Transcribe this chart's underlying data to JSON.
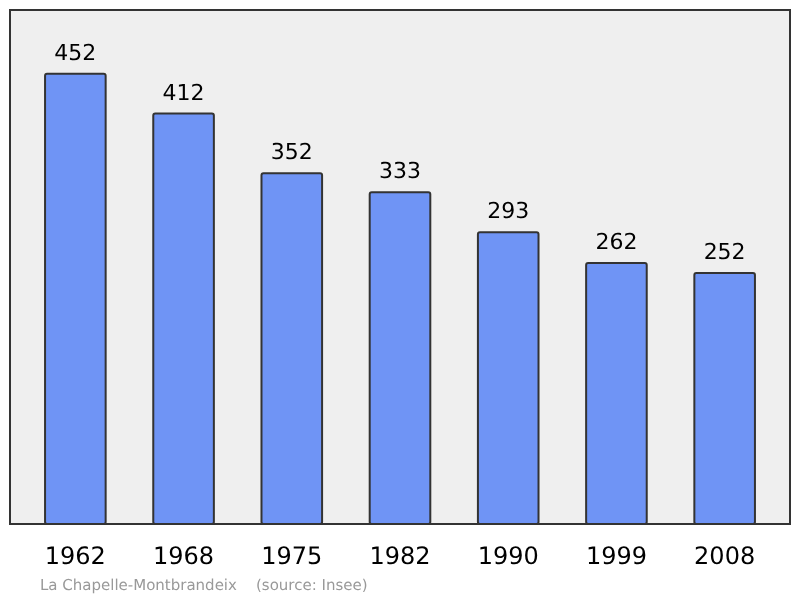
{
  "chart_data": {
    "type": "bar",
    "categories": [
      "1962",
      "1968",
      "1975",
      "1982",
      "1990",
      "1999",
      "2008"
    ],
    "values": [
      452,
      412,
      352,
      333,
      293,
      262,
      252
    ],
    "color": "#6f94f5",
    "ylim": [
      0,
      516
    ],
    "data_labels": true,
    "tick_labels": "x",
    "annotations": [
      "La Chapelle-Montbrandeix    (source: Insee)"
    ]
  }
}
